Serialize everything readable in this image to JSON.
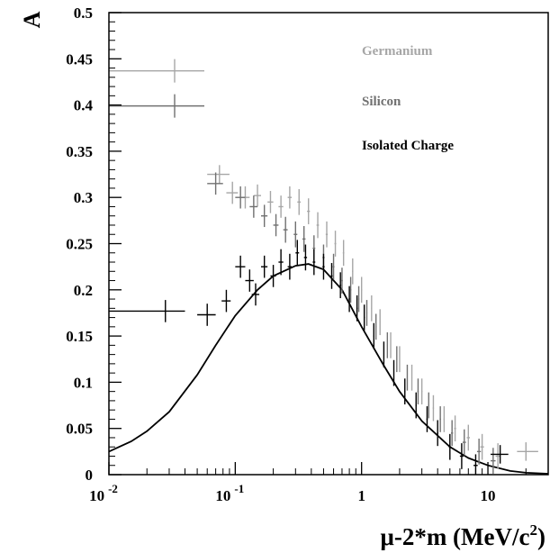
{
  "chart_data": {
    "type": "scatter",
    "title": "",
    "ylabel": "A",
    "xlabel": {
      "base": "μ-2*m (MeV/c",
      "sup": "2",
      "end": ")"
    },
    "xscale": "log",
    "xlim": [
      0.01,
      30
    ],
    "ylim": [
      0,
      0.5
    ],
    "grid": false,
    "legend_placement": "top-right",
    "x_ticks": [
      {
        "value": 0.01,
        "base": "10",
        "exp": "-2"
      },
      {
        "value": 0.1,
        "base": "10",
        "exp": "-1"
      },
      {
        "value": 1,
        "base": "1",
        "exp": ""
      },
      {
        "value": 10,
        "base": "10",
        "exp": ""
      }
    ],
    "y_ticks": [
      {
        "value": 0,
        "label": "0"
      },
      {
        "value": 0.05,
        "label": "0.05"
      },
      {
        "value": 0.1,
        "label": "0.1"
      },
      {
        "value": 0.15,
        "label": "0.15"
      },
      {
        "value": 0.2,
        "label": "0.2"
      },
      {
        "value": 0.25,
        "label": "0.25"
      },
      {
        "value": 0.3,
        "label": "0.3"
      },
      {
        "value": 0.35,
        "label": "0.35"
      },
      {
        "value": 0.4,
        "label": "0.4"
      },
      {
        "value": 0.45,
        "label": "0.45"
      },
      {
        "value": 0.5,
        "label": "0.5"
      }
    ],
    "series": [
      {
        "name": "Germanium",
        "color": "#a6a6a6",
        "points": [
          {
            "x": 0.075,
            "xlo": 0.06,
            "xhi": 0.09,
            "y": 0.325,
            "ey": 0.01
          },
          {
            "x": 0.095,
            "xlo": 0.085,
            "xhi": 0.105,
            "y": 0.305,
            "ey": 0.012
          },
          {
            "x": 0.12,
            "xlo": 0.11,
            "xhi": 0.13,
            "y": 0.3,
            "ey": 0.012
          },
          {
            "x": 0.15,
            "xlo": 0.14,
            "xhi": 0.16,
            "y": 0.302,
            "ey": 0.012
          },
          {
            "x": 0.19,
            "xlo": 0.18,
            "xhi": 0.2,
            "y": 0.295,
            "ey": 0.012
          },
          {
            "x": 0.23,
            "xlo": 0.22,
            "xhi": 0.24,
            "y": 0.29,
            "ey": 0.012
          },
          {
            "x": 0.27,
            "xlo": 0.26,
            "xhi": 0.28,
            "y": 0.3,
            "ey": 0.012
          },
          {
            "x": 0.32,
            "xlo": 0.31,
            "xhi": 0.33,
            "y": 0.295,
            "ey": 0.014
          },
          {
            "x": 0.38,
            "xlo": 0.37,
            "xhi": 0.39,
            "y": 0.285,
            "ey": 0.014
          },
          {
            "x": 0.45,
            "xlo": 0.44,
            "xhi": 0.46,
            "y": 0.27,
            "ey": 0.014
          },
          {
            "x": 0.53,
            "xlo": 0.52,
            "xhi": 0.54,
            "y": 0.26,
            "ey": 0.014
          },
          {
            "x": 0.62,
            "xlo": 0.61,
            "xhi": 0.63,
            "y": 0.25,
            "ey": 0.014
          },
          {
            "x": 0.72,
            "xlo": 0.71,
            "xhi": 0.73,
            "y": 0.24,
            "ey": 0.014
          },
          {
            "x": 0.85,
            "xlo": 0.84,
            "xhi": 0.86,
            "y": 0.22,
            "ey": 0.014
          },
          {
            "x": 1.0,
            "xlo": 0.99,
            "xhi": 1.01,
            "y": 0.2,
            "ey": 0.014
          },
          {
            "x": 1.2,
            "xlo": 1.19,
            "xhi": 1.21,
            "y": 0.18,
            "ey": 0.014
          },
          {
            "x": 1.4,
            "xlo": 1.39,
            "xhi": 1.41,
            "y": 0.165,
            "ey": 0.014
          },
          {
            "x": 1.7,
            "xlo": 1.69,
            "xhi": 1.71,
            "y": 0.14,
            "ey": 0.014
          },
          {
            "x": 2.0,
            "xlo": 1.99,
            "xhi": 2.01,
            "y": 0.125,
            "ey": 0.014
          },
          {
            "x": 2.5,
            "xlo": 2.48,
            "xhi": 2.52,
            "y": 0.105,
            "ey": 0.014
          },
          {
            "x": 3.0,
            "xlo": 2.97,
            "xhi": 3.03,
            "y": 0.09,
            "ey": 0.014
          },
          {
            "x": 3.7,
            "xlo": 3.66,
            "xhi": 3.74,
            "y": 0.072,
            "ey": 0.014
          },
          {
            "x": 4.5,
            "xlo": 4.45,
            "xhi": 4.55,
            "y": 0.06,
            "ey": 0.014
          },
          {
            "x": 5.5,
            "xlo": 5.4,
            "xhi": 5.6,
            "y": 0.05,
            "ey": 0.014
          },
          {
            "x": 7.0,
            "xlo": 6.8,
            "xhi": 7.2,
            "y": 0.04,
            "ey": 0.014
          },
          {
            "x": 9.0,
            "xlo": 8.7,
            "xhi": 9.3,
            "y": 0.03,
            "ey": 0.014
          },
          {
            "x": 12.0,
            "xlo": 11.5,
            "xhi": 12.5,
            "y": 0.02,
            "ey": 0.014
          },
          {
            "x": 20.0,
            "xlo": 17.0,
            "xhi": 25.0,
            "y": 0.025,
            "ey": 0.01
          }
        ]
      },
      {
        "name": "Silicon",
        "color": "#707070",
        "points": [
          {
            "x": 0.07,
            "xlo": 0.06,
            "xhi": 0.08,
            "y": 0.315,
            "ey": 0.012
          },
          {
            "x": 0.11,
            "xlo": 0.1,
            "xhi": 0.12,
            "y": 0.3,
            "ey": 0.012
          },
          {
            "x": 0.14,
            "xlo": 0.13,
            "xhi": 0.15,
            "y": 0.29,
            "ey": 0.012
          },
          {
            "x": 0.17,
            "xlo": 0.16,
            "xhi": 0.18,
            "y": 0.28,
            "ey": 0.012
          },
          {
            "x": 0.21,
            "xlo": 0.2,
            "xhi": 0.22,
            "y": 0.27,
            "ey": 0.012
          },
          {
            "x": 0.25,
            "xlo": 0.24,
            "xhi": 0.26,
            "y": 0.265,
            "ey": 0.014
          },
          {
            "x": 0.3,
            "xlo": 0.29,
            "xhi": 0.31,
            "y": 0.26,
            "ey": 0.014
          },
          {
            "x": 0.35,
            "xlo": 0.34,
            "xhi": 0.36,
            "y": 0.255,
            "ey": 0.014
          },
          {
            "x": 0.42,
            "xlo": 0.41,
            "xhi": 0.43,
            "y": 0.245,
            "ey": 0.014
          },
          {
            "x": 0.5,
            "xlo": 0.49,
            "xhi": 0.51,
            "y": 0.235,
            "ey": 0.014
          },
          {
            "x": 0.6,
            "xlo": 0.59,
            "xhi": 0.61,
            "y": 0.225,
            "ey": 0.014
          },
          {
            "x": 0.7,
            "xlo": 0.69,
            "xhi": 0.71,
            "y": 0.21,
            "ey": 0.014
          },
          {
            "x": 0.82,
            "xlo": 0.81,
            "xhi": 0.83,
            "y": 0.2,
            "ey": 0.014
          },
          {
            "x": 0.95,
            "xlo": 0.94,
            "xhi": 0.96,
            "y": 0.19,
            "ey": 0.014
          },
          {
            "x": 1.1,
            "xlo": 1.09,
            "xhi": 1.11,
            "y": 0.175,
            "ey": 0.014
          },
          {
            "x": 1.3,
            "xlo": 1.29,
            "xhi": 1.31,
            "y": 0.16,
            "ey": 0.014
          },
          {
            "x": 1.6,
            "xlo": 1.59,
            "xhi": 1.61,
            "y": 0.14,
            "ey": 0.014
          },
          {
            "x": 1.9,
            "xlo": 1.89,
            "xhi": 1.91,
            "y": 0.125,
            "ey": 0.014
          },
          {
            "x": 2.3,
            "xlo": 2.28,
            "xhi": 2.32,
            "y": 0.105,
            "ey": 0.014
          },
          {
            "x": 2.8,
            "xlo": 2.77,
            "xhi": 2.83,
            "y": 0.09,
            "ey": 0.014
          },
          {
            "x": 3.4,
            "xlo": 3.36,
            "xhi": 3.44,
            "y": 0.075,
            "ey": 0.014
          },
          {
            "x": 4.2,
            "xlo": 4.15,
            "xhi": 4.25,
            "y": 0.06,
            "ey": 0.014
          },
          {
            "x": 5.2,
            "xlo": 5.1,
            "xhi": 5.3,
            "y": 0.045,
            "ey": 0.014
          },
          {
            "x": 6.5,
            "xlo": 6.3,
            "xhi": 6.7,
            "y": 0.035,
            "ey": 0.014
          },
          {
            "x": 8.5,
            "xlo": 8.2,
            "xhi": 8.8,
            "y": 0.025,
            "ey": 0.014
          },
          {
            "x": 11.0,
            "xlo": 10.5,
            "xhi": 11.5,
            "y": 0.015,
            "ey": 0.014
          }
        ]
      },
      {
        "name": "Isolated Charge",
        "color": "#000000",
        "points": [
          {
            "x": 0.028,
            "xlo": 0.01,
            "xhi": 0.04,
            "y": 0.177,
            "ey": 0.012
          },
          {
            "x": 0.06,
            "xlo": 0.05,
            "xhi": 0.07,
            "y": 0.173,
            "ey": 0.012
          },
          {
            "x": 0.085,
            "xlo": 0.078,
            "xhi": 0.092,
            "y": 0.188,
            "ey": 0.012
          },
          {
            "x": 0.11,
            "xlo": 0.1,
            "xhi": 0.12,
            "y": 0.225,
            "ey": 0.012
          },
          {
            "x": 0.13,
            "xlo": 0.12,
            "xhi": 0.14,
            "y": 0.21,
            "ey": 0.012
          },
          {
            "x": 0.145,
            "xlo": 0.135,
            "xhi": 0.155,
            "y": 0.195,
            "ey": 0.012
          },
          {
            "x": 0.17,
            "xlo": 0.16,
            "xhi": 0.18,
            "y": 0.225,
            "ey": 0.012
          },
          {
            "x": 0.2,
            "xlo": 0.19,
            "xhi": 0.21,
            "y": 0.215,
            "ey": 0.012
          },
          {
            "x": 0.23,
            "xlo": 0.22,
            "xhi": 0.24,
            "y": 0.23,
            "ey": 0.014
          },
          {
            "x": 0.27,
            "xlo": 0.26,
            "xhi": 0.28,
            "y": 0.225,
            "ey": 0.014
          },
          {
            "x": 0.31,
            "xlo": 0.3,
            "xhi": 0.32,
            "y": 0.24,
            "ey": 0.014
          },
          {
            "x": 0.36,
            "xlo": 0.35,
            "xhi": 0.37,
            "y": 0.235,
            "ey": 0.014
          },
          {
            "x": 0.42,
            "xlo": 0.41,
            "xhi": 0.43,
            "y": 0.23,
            "ey": 0.014
          },
          {
            "x": 0.5,
            "xlo": 0.49,
            "xhi": 0.51,
            "y": 0.225,
            "ey": 0.014
          },
          {
            "x": 0.58,
            "xlo": 0.57,
            "xhi": 0.59,
            "y": 0.215,
            "ey": 0.014
          },
          {
            "x": 0.68,
            "xlo": 0.67,
            "xhi": 0.69,
            "y": 0.205,
            "ey": 0.014
          },
          {
            "x": 0.8,
            "xlo": 0.79,
            "xhi": 0.81,
            "y": 0.19,
            "ey": 0.014
          },
          {
            "x": 0.92,
            "xlo": 0.91,
            "xhi": 0.93,
            "y": 0.18,
            "ey": 0.014
          },
          {
            "x": 1.05,
            "xlo": 1.04,
            "xhi": 1.06,
            "y": 0.17,
            "ey": 0.014
          },
          {
            "x": 1.25,
            "xlo": 1.24,
            "xhi": 1.26,
            "y": 0.15,
            "ey": 0.014
          },
          {
            "x": 1.5,
            "xlo": 1.49,
            "xhi": 1.51,
            "y": 0.13,
            "ey": 0.014
          },
          {
            "x": 1.8,
            "xlo": 1.79,
            "xhi": 1.81,
            "y": 0.11,
            "ey": 0.014
          },
          {
            "x": 2.2,
            "xlo": 2.18,
            "xhi": 2.22,
            "y": 0.09,
            "ey": 0.014
          },
          {
            "x": 2.7,
            "xlo": 2.67,
            "xhi": 2.73,
            "y": 0.075,
            "ey": 0.014
          },
          {
            "x": 3.3,
            "xlo": 3.26,
            "xhi": 3.34,
            "y": 0.06,
            "ey": 0.014
          },
          {
            "x": 4.0,
            "xlo": 3.95,
            "xhi": 4.05,
            "y": 0.045,
            "ey": 0.014
          },
          {
            "x": 5.0,
            "xlo": 4.9,
            "xhi": 5.1,
            "y": 0.03,
            "ey": 0.014
          },
          {
            "x": 6.2,
            "xlo": 6.0,
            "xhi": 6.4,
            "y": 0.02,
            "ey": 0.014
          },
          {
            "x": 8.0,
            "xlo": 7.7,
            "xhi": 8.3,
            "y": 0.01,
            "ey": 0.012
          },
          {
            "x": 12.5,
            "xlo": 10.5,
            "xhi": 14.5,
            "y": 0.022,
            "ey": 0.01
          }
        ]
      }
    ],
    "curve": {
      "color": "#000000",
      "points": [
        {
          "x": 0.01,
          "y": 0.025
        },
        {
          "x": 0.015,
          "y": 0.036
        },
        {
          "x": 0.02,
          "y": 0.047
        },
        {
          "x": 0.03,
          "y": 0.068
        },
        {
          "x": 0.05,
          "y": 0.108
        },
        {
          "x": 0.07,
          "y": 0.14
        },
        {
          "x": 0.1,
          "y": 0.172
        },
        {
          "x": 0.15,
          "y": 0.2
        },
        {
          "x": 0.2,
          "y": 0.215
        },
        {
          "x": 0.3,
          "y": 0.226
        },
        {
          "x": 0.38,
          "y": 0.228
        },
        {
          "x": 0.5,
          "y": 0.222
        },
        {
          "x": 0.7,
          "y": 0.2
        },
        {
          "x": 1.0,
          "y": 0.16
        },
        {
          "x": 1.5,
          "y": 0.118
        },
        {
          "x": 2.0,
          "y": 0.09
        },
        {
          "x": 3.0,
          "y": 0.058
        },
        {
          "x": 5.0,
          "y": 0.03
        },
        {
          "x": 7.0,
          "y": 0.018
        },
        {
          "x": 10.0,
          "y": 0.01
        },
        {
          "x": 15.0,
          "y": 0.004
        },
        {
          "x": 20.0,
          "y": 0.002
        },
        {
          "x": 30.0,
          "y": 0.001
        }
      ]
    },
    "legend": [
      {
        "label": "Germanium",
        "color": "#a6a6a6",
        "marker_y": 0.437
      },
      {
        "label": "Silicon",
        "color": "#707070",
        "marker_y": 0.399
      },
      {
        "label": "Isolated Charge",
        "color": "#000000",
        "marker_y": null
      }
    ]
  }
}
